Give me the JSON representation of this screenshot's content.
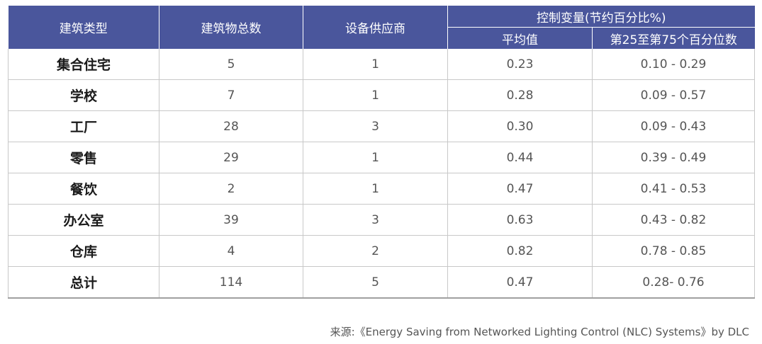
{
  "headers": {
    "building_type": "建筑类型",
    "building_count": "建筑物总数",
    "suppliers": "设备供应商",
    "control_variable": "控制变量(节约百分比%)",
    "average": "平均值",
    "percentile": "第25至第75个百分位数"
  },
  "rows": [
    {
      "type": "集合住宅",
      "count": "5",
      "suppliers": "1",
      "average": "0.23",
      "percentile": "0.10 - 0.29"
    },
    {
      "type": "学校",
      "count": "7",
      "suppliers": "1",
      "average": "0.28",
      "percentile": "0.09 - 0.57"
    },
    {
      "type": "工厂",
      "count": "28",
      "suppliers": "3",
      "average": "0.30",
      "percentile": "0.09 - 0.43"
    },
    {
      "type": "零售",
      "count": "29",
      "suppliers": "1",
      "average": "0.44",
      "percentile": "0.39 - 0.49"
    },
    {
      "type": "餐饮",
      "count": "2",
      "suppliers": "1",
      "average": "0.47",
      "percentile": "0.41 - 0.53"
    },
    {
      "type": "办公室",
      "count": "39",
      "suppliers": "3",
      "average": "0.63",
      "percentile": "0.43 - 0.82"
    },
    {
      "type": "仓库",
      "count": "4",
      "suppliers": "2",
      "average": "0.82",
      "percentile": "0.78 - 0.85"
    },
    {
      "type": "总计",
      "count": "114",
      "suppliers": "5",
      "average": "0.47",
      "percentile": "0.28- 0.76"
    }
  ],
  "source": "来源:《Energy Saving from Networked Lighting Control (NLC) Systems》by DLC",
  "colors": {
    "header_bg": "#4a569c",
    "header_text": "#ffffff",
    "body_text": "#555555",
    "type_text": "#1a1a1a",
    "grid": "#c8c8c8"
  }
}
